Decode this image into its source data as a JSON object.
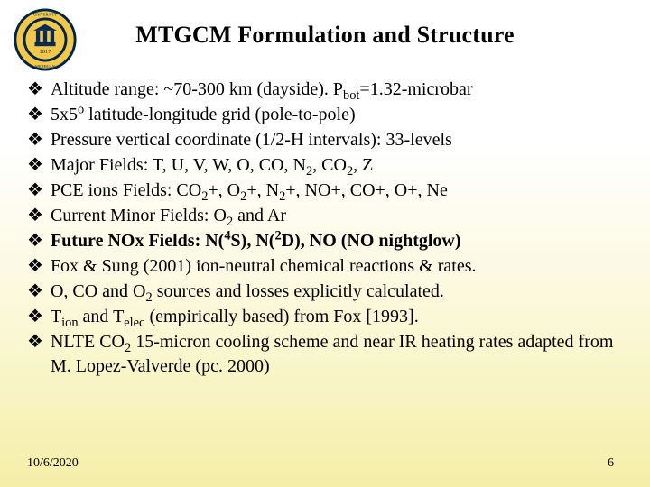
{
  "title": {
    "text": "MTGCM Formulation and Structure",
    "fontsize": 26
  },
  "bullet_style": {
    "glyph": "❖",
    "fontsize": 20,
    "line_height": 1.35
  },
  "bullets": [
    {
      "html": "Altitude range: ~70-300 km (dayside). P<sub>bot</sub>=1.32-microbar",
      "bold": false
    },
    {
      "html": "5x5<sup>o</sup> latitude-longitude grid (pole-to-pole)",
      "bold": false
    },
    {
      "html": "Pressure vertical coordinate (1/2-H intervals): 33-levels",
      "bold": false
    },
    {
      "html": "Major Fields:  T, U, V, W, O, CO, N<sub>2</sub>, CO<sub>2</sub>, Z",
      "bold": false
    },
    {
      "html": "PCE ions Fields:  CO<sub>2</sub>+, O<sub>2</sub>+, N<sub>2</sub>+, NO+, CO+, O+, Ne",
      "bold": false
    },
    {
      "html": "Current Minor Fields:  O<sub>2</sub> and Ar",
      "bold": false
    },
    {
      "html": "Future NOx Fields: N(<sup>4</sup>S), N(<sup>2</sup>D), NO (NO nightglow)",
      "bold": true
    },
    {
      "html": "Fox & Sung (2001) ion-neutral chemical reactions & rates.",
      "bold": false
    },
    {
      "html": "O, CO and O<sub>2</sub> sources and losses explicitly calculated.",
      "bold": false
    },
    {
      "html": "T<sub>ion</sub> and T<sub>elec</sub> (empirically based) from Fox [1993].",
      "bold": false
    },
    {
      "html": "NLTE CO<sub>2</sub> 15-micron cooling scheme and near IR heating rates adapted from M. Lopez-Valverde (pc. 2000)",
      "bold": false
    }
  ],
  "footer": {
    "date": "10/6/2020",
    "page": "6",
    "fontsize": 14
  },
  "seal": {
    "outer_color": "#00244a",
    "gold": "#f2c84b",
    "inner_text_color": "#0a2a55",
    "founded": "1817"
  }
}
